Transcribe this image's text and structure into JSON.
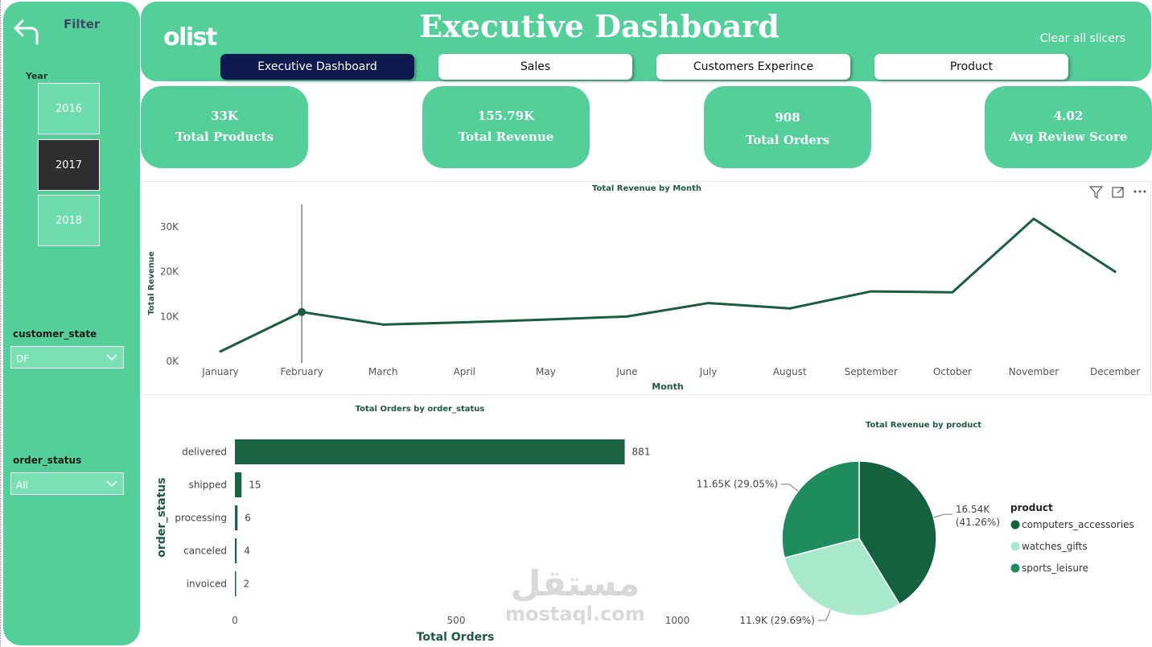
{
  "sidebar": {
    "back_icon": "back-arrow-icon",
    "filter_title": "Filter",
    "year_label": "Year",
    "years": [
      "2016",
      "2017",
      "2018"
    ],
    "selected_year": "2017",
    "customer_state_label": "customer_state",
    "customer_state_value": "DF",
    "order_status_label": "order_status",
    "order_status_value": "All"
  },
  "header": {
    "logo": "olist",
    "title": "Executive Dashboard",
    "clear_slicers": "Clear all slicers",
    "tabs": [
      "Executive Dashboard",
      "Sales",
      "Customers Experince",
      "Product"
    ],
    "active_tab": "Executive Dashboard"
  },
  "kpis": [
    {
      "value": "33K",
      "label": "Total Products"
    },
    {
      "value": "155.79K",
      "label": "Total Revenue"
    },
    {
      "value": "908",
      "label": "Total Orders"
    },
    {
      "value": "4.02",
      "label": "Avg Review Score"
    }
  ],
  "colors": {
    "accent": "#54cf9a",
    "dark_green": "#14603f",
    "mid_green": "#1e8c5c",
    "light_green": "#a8e8cb",
    "nav_active": "#0e1a4d"
  },
  "visual_icons": [
    "filter-icon",
    "focus-mode-icon",
    "more-options-icon"
  ],
  "chart_data": [
    {
      "type": "line",
      "title": "Total Revenue by Month",
      "xlabel": "Month",
      "ylabel": "Total Revenue",
      "categories": [
        "January",
        "February",
        "March",
        "April",
        "May",
        "June",
        "July",
        "August",
        "September",
        "October",
        "November",
        "December"
      ],
      "values": [
        2200,
        11000,
        8200,
        8700,
        9300,
        10000,
        13000,
        11800,
        15600,
        15400,
        31800,
        20000
      ],
      "ylim": [
        0,
        35000
      ],
      "yticks": [
        0,
        10000,
        20000,
        30000
      ],
      "ytick_labels": [
        "0K",
        "10K",
        "20K",
        "30K"
      ],
      "highlighted_category": "February",
      "grid": false
    },
    {
      "type": "bar",
      "orientation": "horizontal",
      "title": "Total Orders by order_status",
      "xlabel": "Total Orders",
      "ylabel": "order_status",
      "categories": [
        "delivered",
        "shipped",
        "processing",
        "canceled",
        "invoiced"
      ],
      "values": [
        881,
        15,
        6,
        4,
        2
      ],
      "xlim": [
        0,
        1000
      ],
      "xticks": [
        0,
        500,
        1000
      ],
      "grid": false
    },
    {
      "type": "pie",
      "title": "Total Revenue by product",
      "legend_title": "product",
      "legend_position": "right",
      "slices": [
        {
          "name": "computers_accessories",
          "value": 16540,
          "label_value": "16.54K",
          "label_pct": "(41.26%)",
          "color": "#14603f"
        },
        {
          "name": "watches_gifts",
          "value": 11900,
          "label": "11.9K (29.69%)",
          "color": "#a8e8cb"
        },
        {
          "name": "sports_leisure",
          "value": 11650,
          "label": "11.65K (29.05%)",
          "color": "#1e8c5c"
        }
      ]
    }
  ],
  "watermark": {
    "arabic": "مستقل",
    "latin": "mostaql.com"
  }
}
